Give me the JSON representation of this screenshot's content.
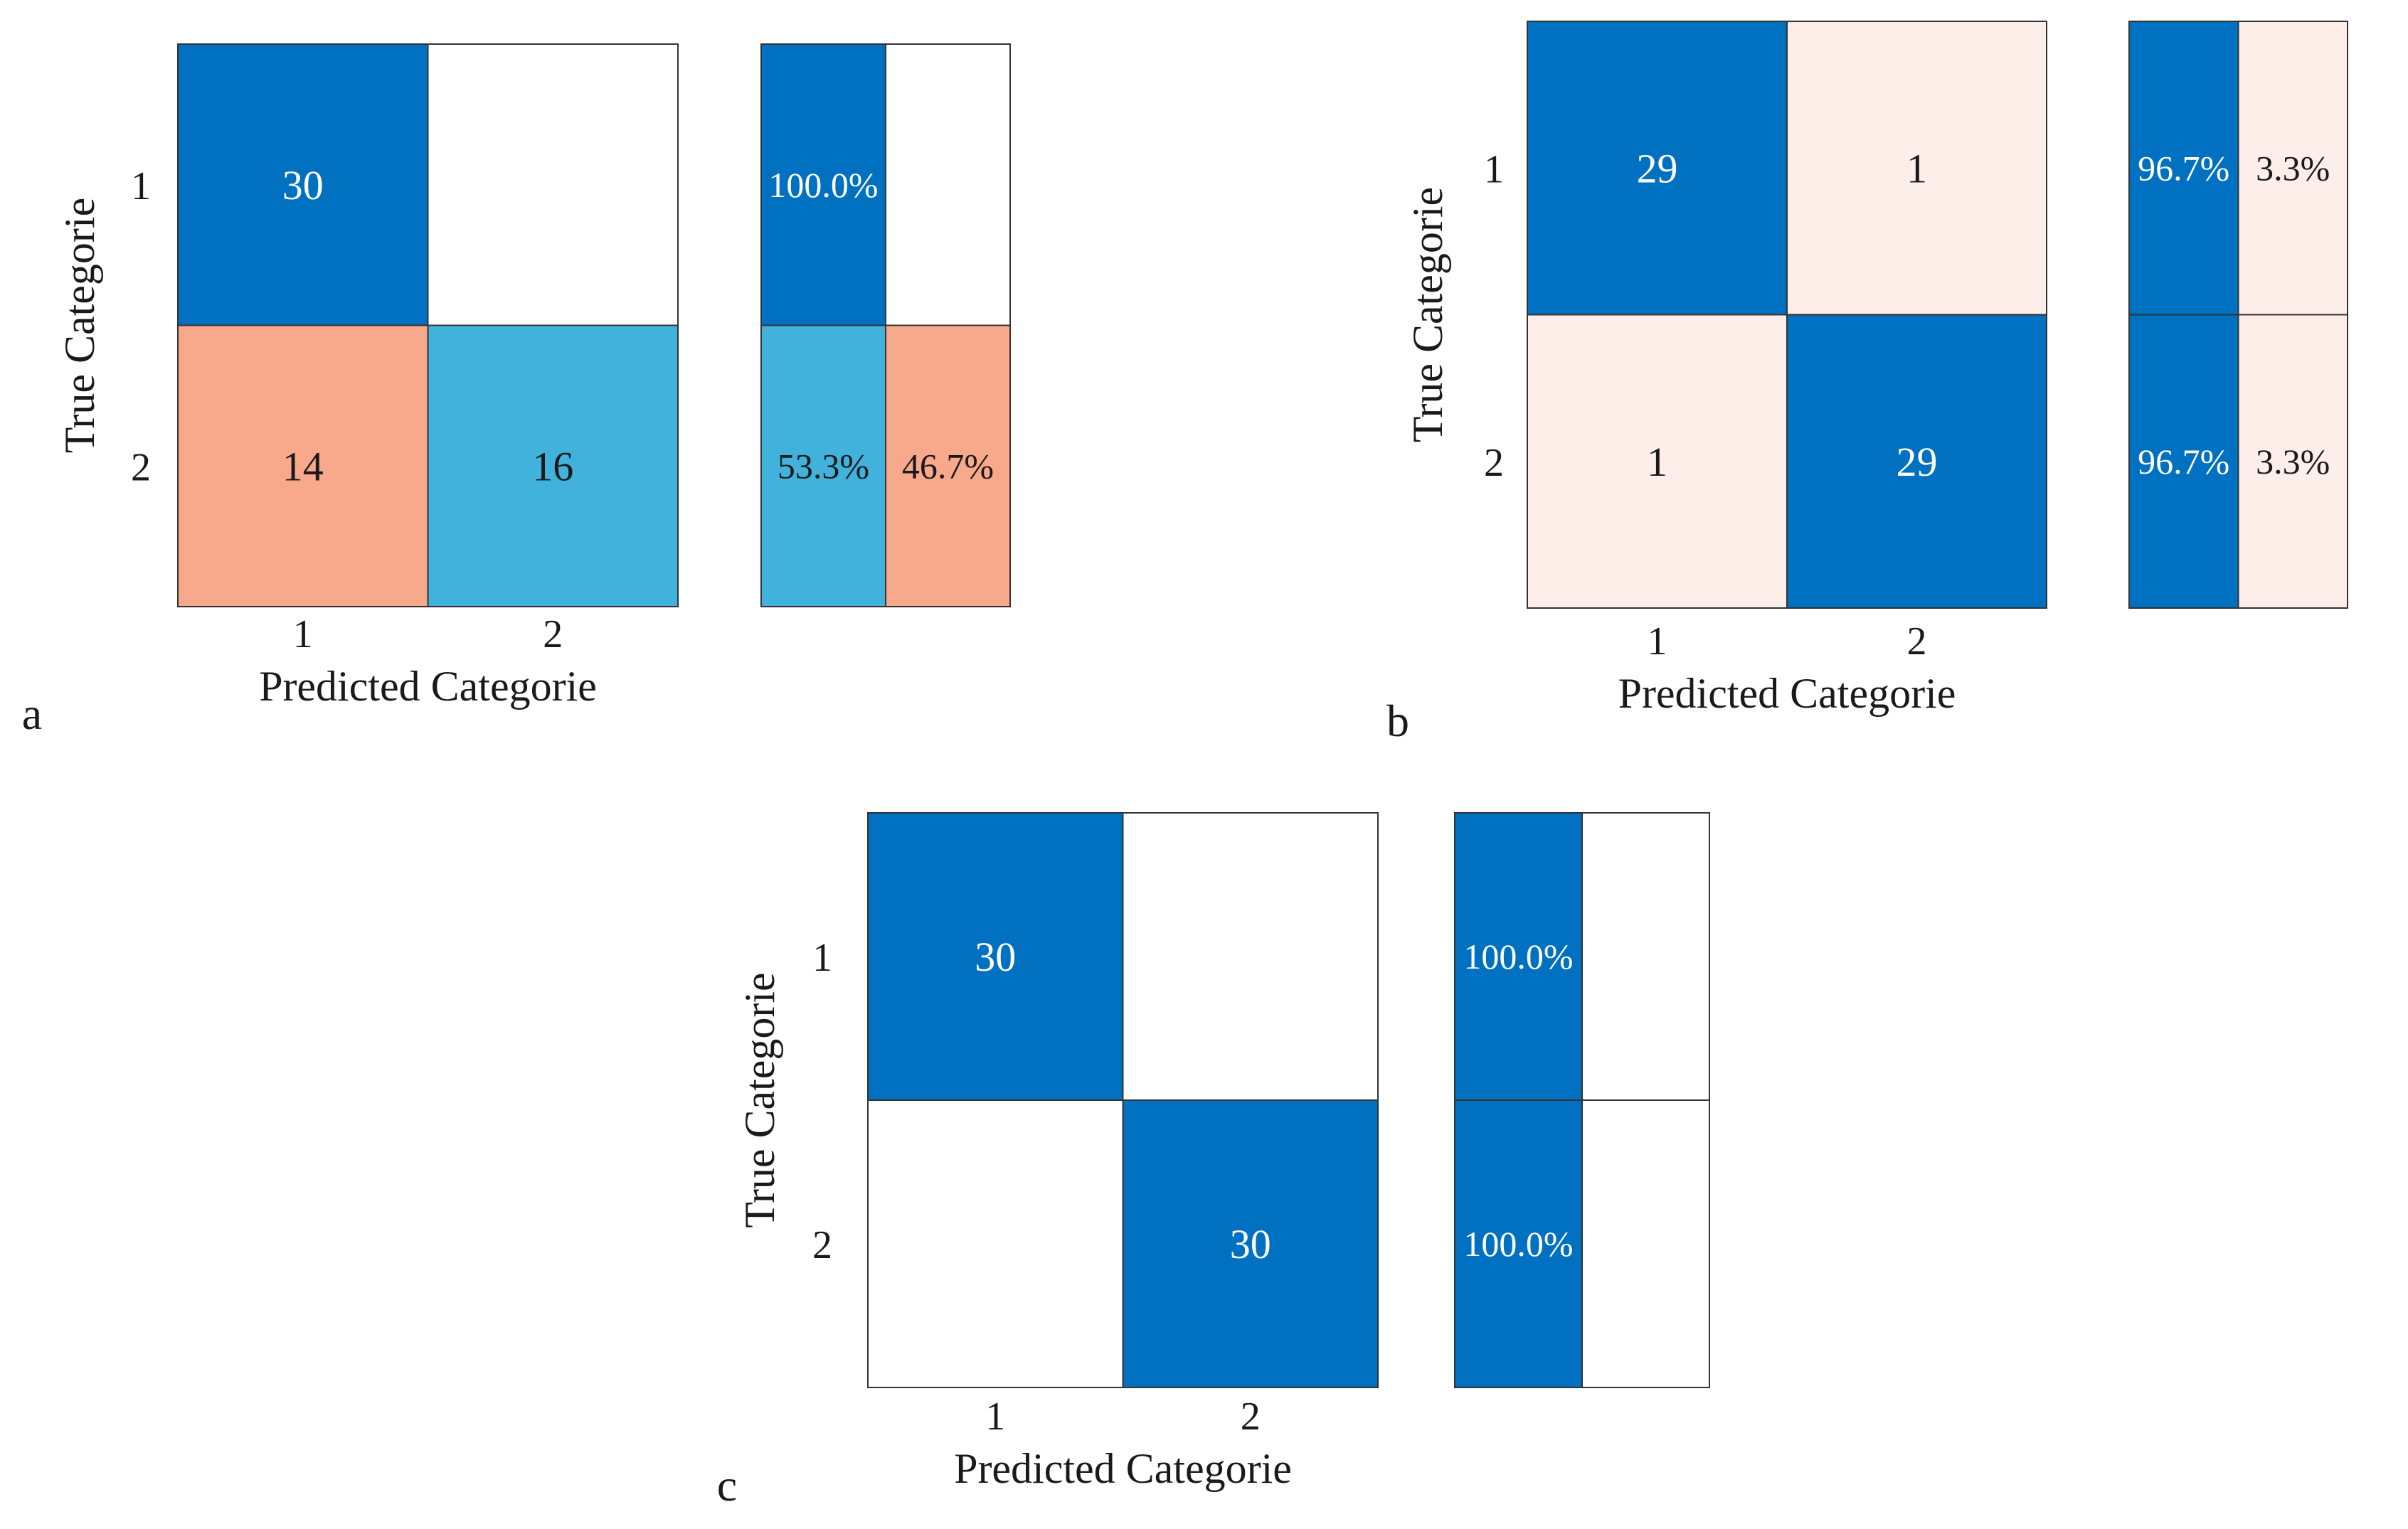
{
  "figure": {
    "background": "#ffffff"
  },
  "colors": {
    "strong_blue": "#0070C0",
    "light_blue": "#41B2DC",
    "salmon": "#F8A98B",
    "pale_pink": "#FDEEEA",
    "white": "#FFFFFF",
    "border": "#333333",
    "text_dark": "#1a1a1a",
    "text_light": "#ffffff"
  },
  "chart_data": [
    {
      "type": "heatmap",
      "panel_label": "a",
      "title": "",
      "xlabel": "Predicted Categorie",
      "ylabel": "True Categorie",
      "row_labels": [
        "1",
        "2"
      ],
      "col_labels": [
        "1",
        "2"
      ],
      "matrix": [
        [
          30,
          0
        ],
        [
          14,
          16
        ]
      ],
      "matrix_text": [
        [
          "30",
          ""
        ],
        [
          "14",
          "16"
        ]
      ],
      "matrix_colors": [
        [
          "strong_blue",
          "white"
        ],
        [
          "salmon",
          "light_blue"
        ]
      ],
      "row_summary": [
        [
          100.0,
          0.0
        ],
        [
          53.3,
          46.7
        ]
      ],
      "row_summary_text": [
        [
          "100.0%",
          ""
        ],
        [
          "53.3%",
          "46.7%"
        ]
      ],
      "row_summary_colors": [
        [
          "strong_blue",
          "white"
        ],
        [
          "light_blue",
          "salmon"
        ]
      ]
    },
    {
      "type": "heatmap",
      "panel_label": "b",
      "title": "",
      "xlabel": "Predicted Categorie",
      "ylabel": "True Categorie",
      "row_labels": [
        "1",
        "2"
      ],
      "col_labels": [
        "1",
        "2"
      ],
      "matrix": [
        [
          29,
          1
        ],
        [
          1,
          29
        ]
      ],
      "matrix_text": [
        [
          "29",
          "1"
        ],
        [
          "1",
          "29"
        ]
      ],
      "matrix_colors": [
        [
          "strong_blue",
          "pale_pink"
        ],
        [
          "pale_pink",
          "strong_blue"
        ]
      ],
      "row_summary": [
        [
          96.7,
          3.3
        ],
        [
          96.7,
          3.3
        ]
      ],
      "row_summary_text": [
        [
          "96.7%",
          "3.3%"
        ],
        [
          "96.7%",
          "3.3%"
        ]
      ],
      "row_summary_colors": [
        [
          "strong_blue",
          "pale_pink"
        ],
        [
          "strong_blue",
          "pale_pink"
        ]
      ]
    },
    {
      "type": "heatmap",
      "panel_label": "c",
      "title": "",
      "xlabel": "Predicted Categorie",
      "ylabel": "True Categorie",
      "row_labels": [
        "1",
        "2"
      ],
      "col_labels": [
        "1",
        "2"
      ],
      "matrix": [
        [
          30,
          0
        ],
        [
          0,
          30
        ]
      ],
      "matrix_text": [
        [
          "30",
          ""
        ],
        [
          "",
          "30"
        ]
      ],
      "matrix_colors": [
        [
          "strong_blue",
          "white"
        ],
        [
          "white",
          "strong_blue"
        ]
      ],
      "row_summary": [
        [
          100.0,
          0.0
        ],
        [
          100.0,
          0.0
        ]
      ],
      "row_summary_text": [
        [
          "100.0%",
          ""
        ],
        [
          "100.0%",
          ""
        ]
      ],
      "row_summary_colors": [
        [
          "strong_blue",
          "white"
        ],
        [
          "strong_blue",
          "white"
        ]
      ]
    }
  ]
}
